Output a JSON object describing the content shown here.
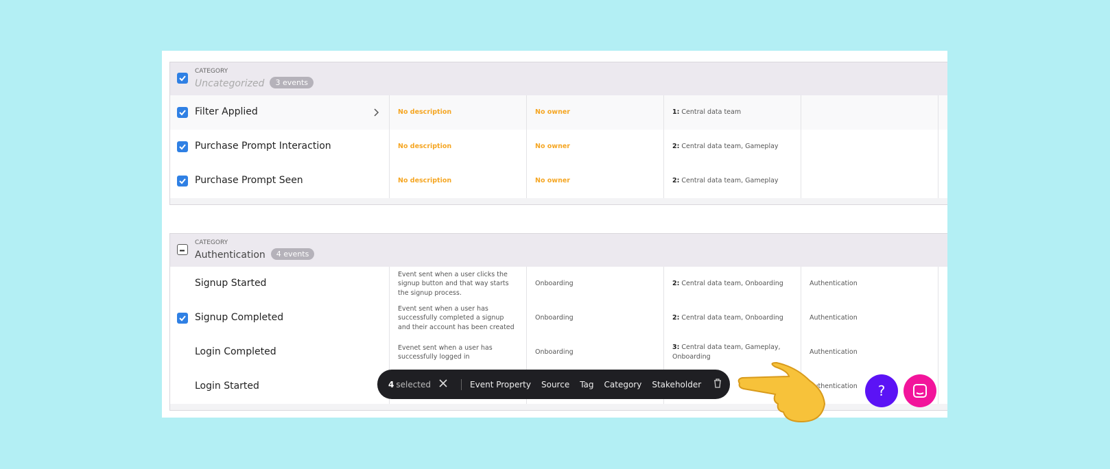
{
  "groups": [
    {
      "label": "CATEGORY",
      "name": "Uncategorized",
      "placeholder": true,
      "count": "3 events",
      "selection": "all",
      "events": [
        {
          "name": "Filter Applied",
          "checked": true,
          "expandable": true,
          "description": "No description",
          "description_missing": true,
          "owner": "No owner",
          "owner_missing": true,
          "stakeholder_count": "1:",
          "stakeholders": "Central data team"
        },
        {
          "name": "Purchase Prompt Interaction",
          "checked": true,
          "description": "No description",
          "description_missing": true,
          "owner": "No owner",
          "owner_missing": true,
          "stakeholder_count": "2:",
          "stakeholders": "Central data team, Gameplay"
        },
        {
          "name": "Purchase Prompt Seen",
          "checked": true,
          "description": "No description",
          "description_missing": true,
          "owner": "No owner",
          "owner_missing": true,
          "stakeholder_count": "2:",
          "stakeholders": "Central data team, Gameplay"
        }
      ]
    },
    {
      "label": "CATEGORY",
      "name": "Authentication",
      "placeholder": false,
      "count": "4 events",
      "selection": "partial",
      "events": [
        {
          "name": "Signup Started",
          "checked": false,
          "description": "Event sent when a user clicks the signup button and that way starts the signup process.",
          "owner": "Onboarding",
          "stakeholder_count": "2:",
          "stakeholders": "Central data team, Onboarding",
          "category": "Authentication"
        },
        {
          "name": "Signup Completed",
          "checked": true,
          "description": "Event sent when a user has successfully completed a signup and their account has been created",
          "owner": "Onboarding",
          "stakeholder_count": "2:",
          "stakeholders": "Central data team, Onboarding",
          "category": "Authentication"
        },
        {
          "name": "Login Completed",
          "checked": false,
          "description": "Evenet sent when a user has successfully logged in",
          "owner": "Onboarding",
          "stakeholder_count": "3:",
          "stakeholders": "Central data team, Gameplay, Onboarding",
          "category": "Authentication"
        },
        {
          "name": "Login Started",
          "checked": false,
          "description": "",
          "owner": "",
          "stakeholder_count": "",
          "stakeholders": "",
          "category": "Authentication"
        }
      ]
    }
  ],
  "toolbar": {
    "count": "4",
    "label": "selected",
    "actions": [
      "Event Property",
      "Source",
      "Tag",
      "Category",
      "Stakeholder"
    ]
  },
  "help_button": "?"
}
